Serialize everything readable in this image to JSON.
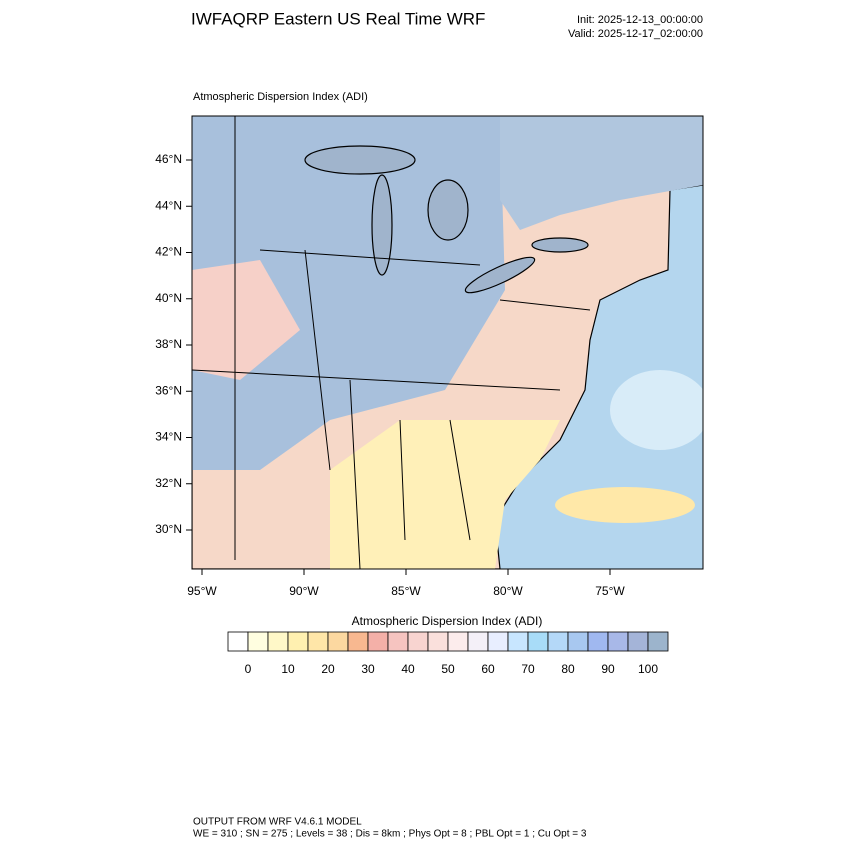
{
  "header": {
    "title": "IWFAQRP Eastern US Real Time WRF",
    "init": "Init: 2025-12-13_00:00:00",
    "valid": "Valid: 2025-12-17_02:00:00"
  },
  "map": {
    "subtitle": "Atmospheric Dispersion Index   (ADI)",
    "lat_labels": [
      "46°N",
      "44°N",
      "42°N",
      "40°N",
      "38°N",
      "36°N",
      "34°N",
      "32°N",
      "30°N"
    ],
    "lon_labels": [
      "95°W",
      "90°W",
      "85°W",
      "80°W",
      "75°W"
    ]
  },
  "colorbar": {
    "title": "Atmospheric Dispersion Index  (ADI)",
    "colors": [
      "#ffffff",
      "#fffee0",
      "#fff8c8",
      "#fff0b0",
      "#ffe6a8",
      "#fcd8a0",
      "#f8b890",
      "#f4b0a8",
      "#f6c4c0",
      "#f8d4d0",
      "#fae0dc",
      "#fcecec",
      "#f4f0f8",
      "#e8eeff",
      "#c8e6ff",
      "#a8dcf8",
      "#b4d8f8",
      "#a8c8f0",
      "#a0b8f0",
      "#a8b8e8",
      "#a4b4d8",
      "#9cb4cc"
    ],
    "labels": [
      "0",
      "10",
      "20",
      "30",
      "40",
      "50",
      "60",
      "70",
      "80",
      "90",
      "100"
    ]
  },
  "footer": {
    "line1": "OUTPUT FROM WRF V4.6.1 MODEL",
    "line2": "WE = 310 ; SN = 275 ; Levels = 38 ; Dis = 8km ; Phys Opt = 8 ; PBL Opt = 1 ; Cu Opt = 3"
  }
}
